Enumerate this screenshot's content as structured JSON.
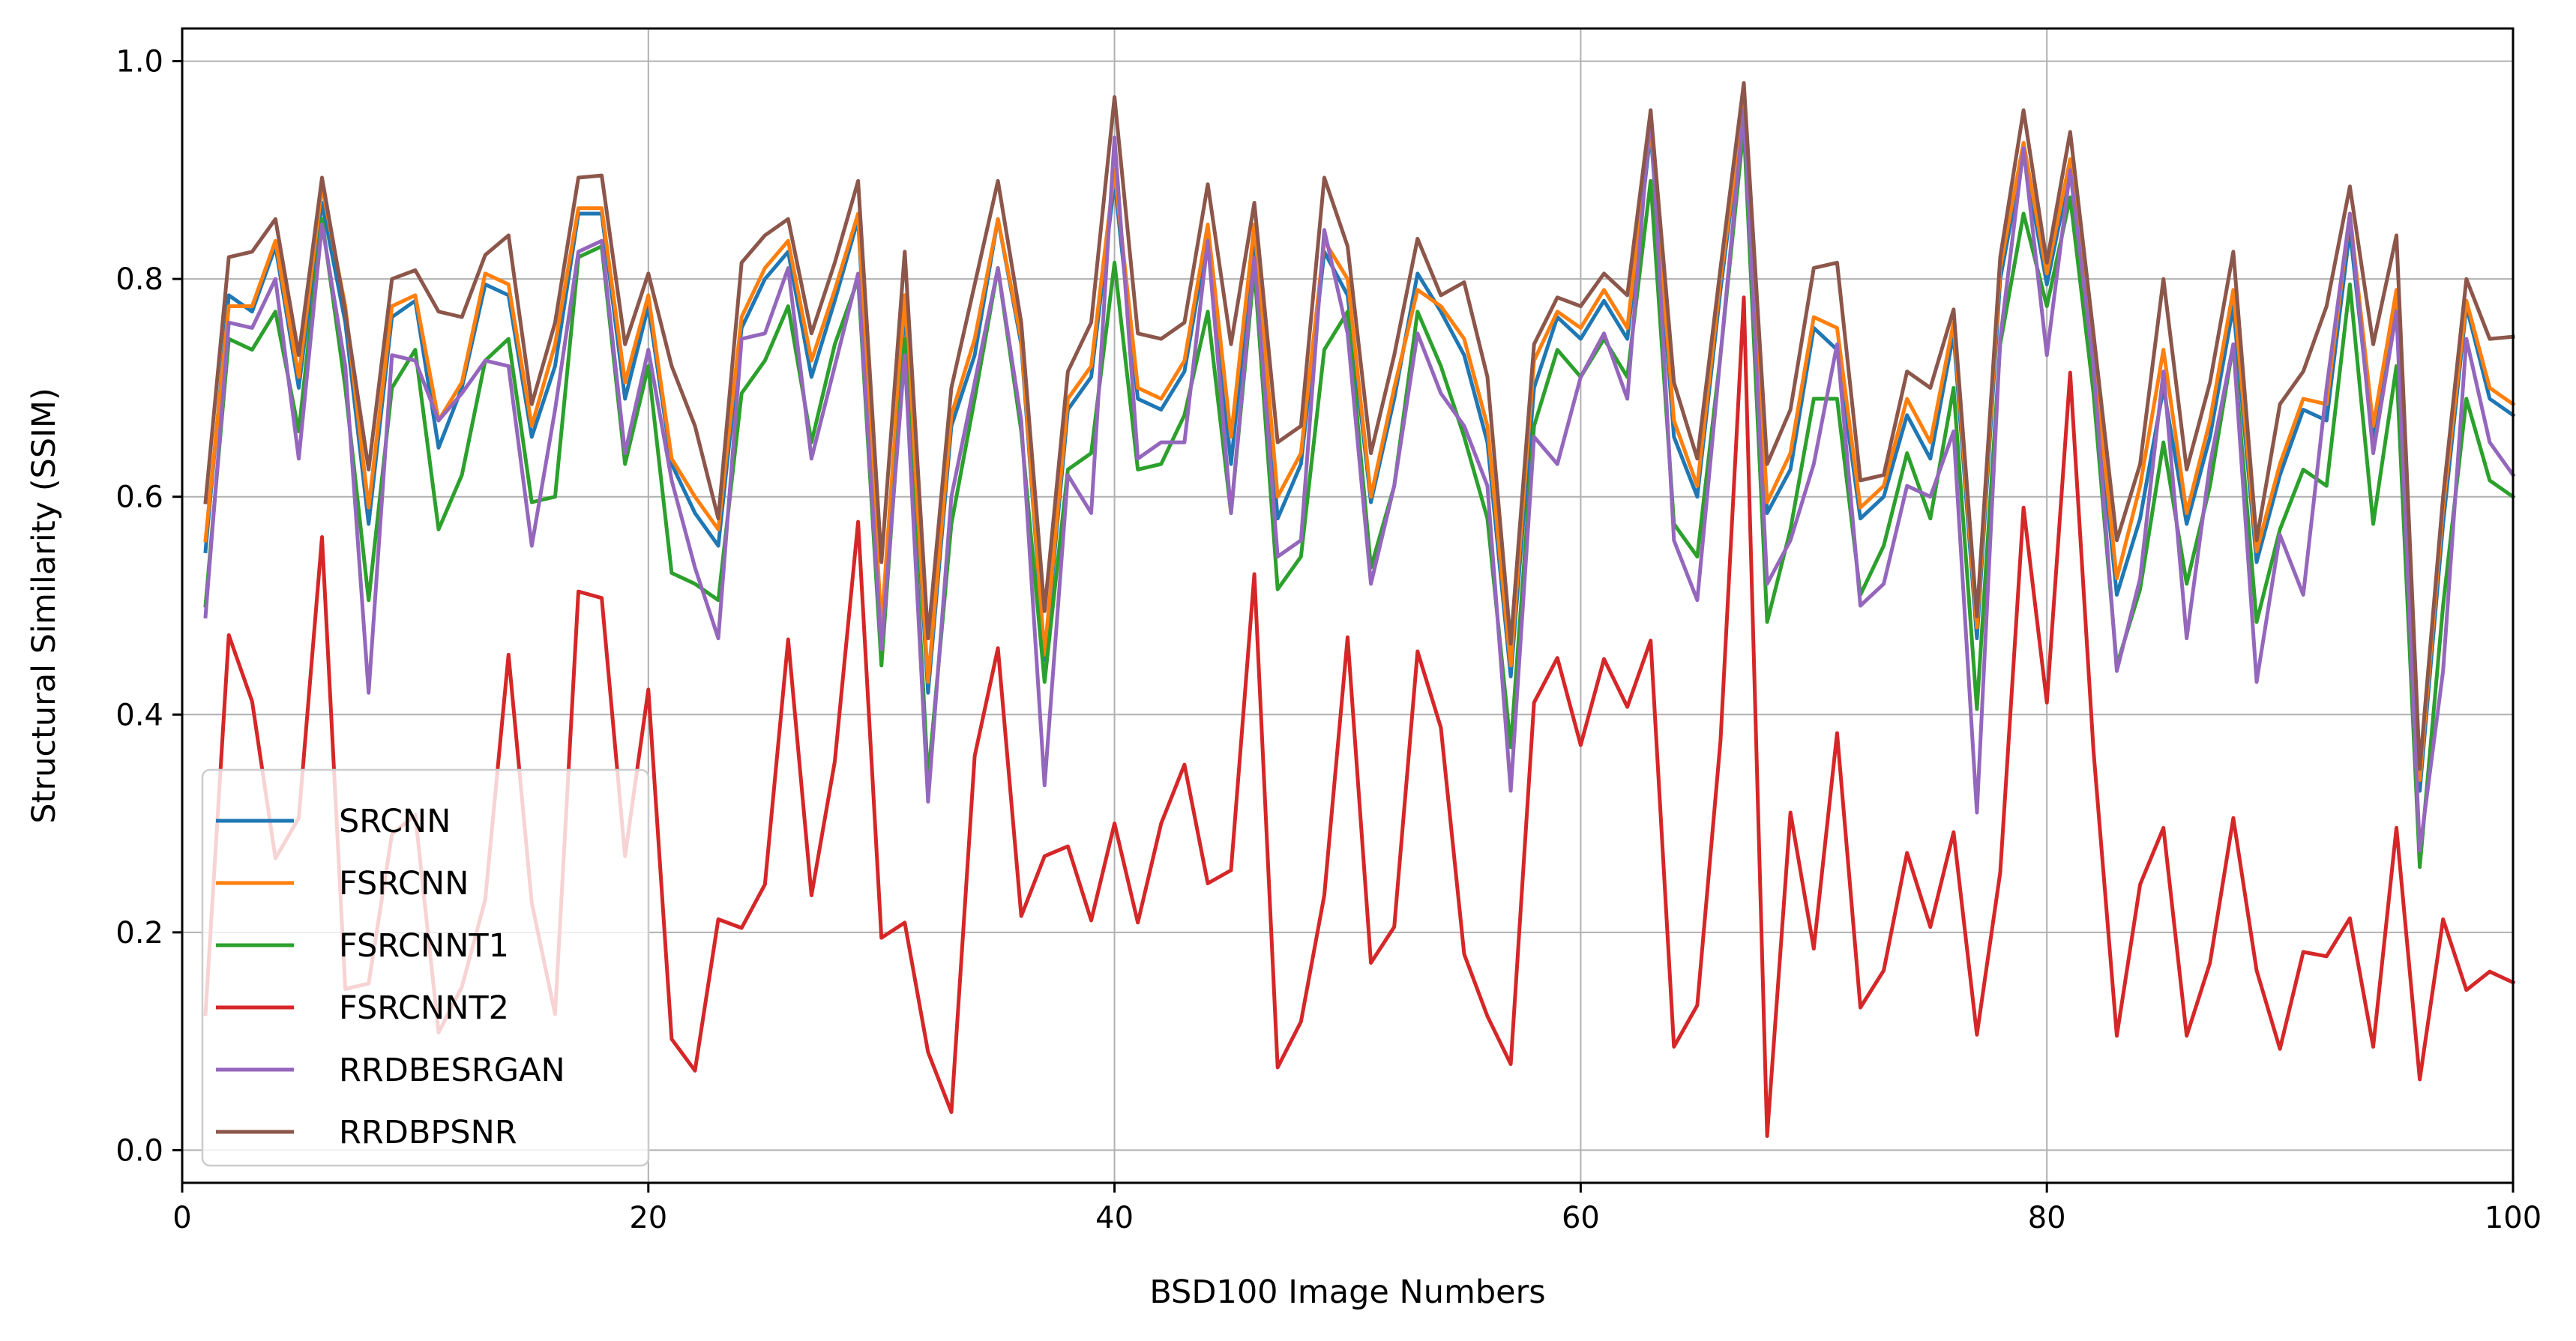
{
  "chart_data": {
    "type": "line",
    "title": "",
    "xlabel": "BSD100 Image Numbers",
    "ylabel": "Structural Similarity (SSIM)",
    "xlim": [
      0,
      100
    ],
    "ylim": [
      -0.03,
      1.03
    ],
    "xticks": [
      0,
      20,
      40,
      60,
      80,
      100
    ],
    "xtick_labels": [
      "0",
      "20",
      "40",
      "60",
      "80",
      "100"
    ],
    "yticks": [
      0.0,
      0.2,
      0.4,
      0.6,
      0.8,
      1.0
    ],
    "ytick_labels": [
      "0.0",
      "0.2",
      "0.4",
      "0.6",
      "0.8",
      "1.0"
    ],
    "grid": true,
    "legend_position": "bottom-left",
    "x": [
      1,
      2,
      3,
      4,
      5,
      6,
      7,
      8,
      9,
      10,
      11,
      12,
      13,
      14,
      15,
      16,
      17,
      18,
      19,
      20,
      21,
      22,
      23,
      24,
      25,
      26,
      27,
      28,
      29,
      30,
      31,
      32,
      33,
      34,
      35,
      36,
      37,
      38,
      39,
      40,
      41,
      42,
      43,
      44,
      45,
      46,
      47,
      48,
      49,
      50,
      51,
      52,
      53,
      54,
      55,
      56,
      57,
      58,
      59,
      60,
      61,
      62,
      63,
      64,
      65,
      66,
      67,
      68,
      69,
      70,
      71,
      72,
      73,
      74,
      75,
      76,
      77,
      78,
      79,
      80,
      81,
      82,
      83,
      84,
      85,
      86,
      87,
      88,
      89,
      90,
      91,
      92,
      93,
      94,
      95,
      96,
      97,
      98,
      99,
      100
    ],
    "series": [
      {
        "name": "SRCNN",
        "color": "#1f77b4",
        "values": [
          0.55,
          0.785,
          0.77,
          0.83,
          0.7,
          0.87,
          0.76,
          0.575,
          0.765,
          0.78,
          0.645,
          0.7,
          0.795,
          0.785,
          0.655,
          0.72,
          0.86,
          0.86,
          0.69,
          0.775,
          0.63,
          0.585,
          0.555,
          0.755,
          0.8,
          0.825,
          0.71,
          0.78,
          0.855,
          0.47,
          0.775,
          0.42,
          0.665,
          0.73,
          0.855,
          0.74,
          0.45,
          0.68,
          0.71,
          0.89,
          0.69,
          0.68,
          0.715,
          0.84,
          0.63,
          0.84,
          0.58,
          0.63,
          0.825,
          0.785,
          0.595,
          0.69,
          0.805,
          0.77,
          0.73,
          0.65,
          0.435,
          0.7,
          0.765,
          0.745,
          0.78,
          0.745,
          0.935,
          0.655,
          0.6,
          0.79,
          0.96,
          0.585,
          0.625,
          0.755,
          0.735,
          0.58,
          0.6,
          0.675,
          0.635,
          0.75,
          0.47,
          0.8,
          0.915,
          0.795,
          0.9,
          0.72,
          0.51,
          0.58,
          0.7,
          0.575,
          0.655,
          0.775,
          0.54,
          0.62,
          0.68,
          0.67,
          0.845,
          0.65,
          0.78,
          0.33,
          0.575,
          0.775,
          0.69,
          0.675
        ]
      },
      {
        "name": "FSRCNN",
        "color": "#ff7f0e",
        "values": [
          0.56,
          0.775,
          0.775,
          0.835,
          0.71,
          0.885,
          0.775,
          0.59,
          0.775,
          0.785,
          0.67,
          0.705,
          0.805,
          0.795,
          0.665,
          0.74,
          0.865,
          0.865,
          0.705,
          0.785,
          0.635,
          0.6,
          0.57,
          0.765,
          0.81,
          0.835,
          0.725,
          0.79,
          0.86,
          0.48,
          0.785,
          0.43,
          0.675,
          0.745,
          0.855,
          0.745,
          0.455,
          0.69,
          0.72,
          0.9,
          0.7,
          0.69,
          0.725,
          0.85,
          0.655,
          0.85,
          0.6,
          0.64,
          0.835,
          0.8,
          0.6,
          0.7,
          0.79,
          0.775,
          0.745,
          0.665,
          0.445,
          0.725,
          0.77,
          0.755,
          0.79,
          0.755,
          0.94,
          0.67,
          0.61,
          0.8,
          0.96,
          0.595,
          0.64,
          0.765,
          0.755,
          0.59,
          0.61,
          0.69,
          0.65,
          0.76,
          0.48,
          0.81,
          0.925,
          0.805,
          0.91,
          0.73,
          0.525,
          0.61,
          0.735,
          0.585,
          0.67,
          0.79,
          0.55,
          0.63,
          0.69,
          0.685,
          0.86,
          0.665,
          0.79,
          0.34,
          0.59,
          0.78,
          0.7,
          0.685
        ]
      },
      {
        "name": "FSRCNNT1",
        "color": "#2ca02c",
        "values": [
          0.5,
          0.745,
          0.735,
          0.77,
          0.66,
          0.855,
          0.7,
          0.505,
          0.7,
          0.735,
          0.57,
          0.62,
          0.725,
          0.745,
          0.595,
          0.6,
          0.82,
          0.83,
          0.63,
          0.72,
          0.53,
          0.52,
          0.505,
          0.695,
          0.725,
          0.775,
          0.65,
          0.74,
          0.8,
          0.445,
          0.745,
          0.34,
          0.575,
          0.69,
          0.81,
          0.66,
          0.43,
          0.625,
          0.64,
          0.815,
          0.625,
          0.63,
          0.675,
          0.77,
          0.585,
          0.81,
          0.515,
          0.545,
          0.735,
          0.77,
          0.535,
          0.61,
          0.77,
          0.72,
          0.655,
          0.58,
          0.37,
          0.665,
          0.735,
          0.71,
          0.745,
          0.71,
          0.89,
          0.575,
          0.545,
          0.73,
          0.94,
          0.485,
          0.57,
          0.69,
          0.69,
          0.51,
          0.555,
          0.64,
          0.58,
          0.7,
          0.405,
          0.74,
          0.86,
          0.775,
          0.875,
          0.695,
          0.445,
          0.515,
          0.65,
          0.52,
          0.61,
          0.74,
          0.485,
          0.57,
          0.625,
          0.61,
          0.795,
          0.575,
          0.72,
          0.26,
          0.5,
          0.69,
          0.615,
          0.6
        ]
      },
      {
        "name": "FSRCNNT2",
        "color": "#d62728",
        "values": [
          0.125,
          0.473,
          0.412,
          0.268,
          0.305,
          0.563,
          0.148,
          0.153,
          0.29,
          0.308,
          0.108,
          0.15,
          0.23,
          0.455,
          0.227,
          0.125,
          0.513,
          0.507,
          0.27,
          0.423,
          0.102,
          0.073,
          0.212,
          0.204,
          0.244,
          0.469,
          0.234,
          0.357,
          0.577,
          0.195,
          0.209,
          0.09,
          0.035,
          0.362,
          0.461,
          0.215,
          0.27,
          0.279,
          0.211,
          0.3,
          0.209,
          0.3,
          0.354,
          0.245,
          0.257,
          0.529,
          0.076,
          0.118,
          0.234,
          0.471,
          0.172,
          0.205,
          0.458,
          0.388,
          0.18,
          0.123,
          0.079,
          0.411,
          0.452,
          0.372,
          0.451,
          0.407,
          0.468,
          0.095,
          0.133,
          0.376,
          0.783,
          0.013,
          0.31,
          0.185,
          0.383,
          0.131,
          0.165,
          0.273,
          0.205,
          0.292,
          0.106,
          0.255,
          0.59,
          0.411,
          0.714,
          0.367,
          0.105,
          0.244,
          0.296,
          0.105,
          0.172,
          0.305,
          0.165,
          0.093,
          0.182,
          0.178,
          0.213,
          0.095,
          0.296,
          0.065,
          0.212,
          0.147,
          0.164,
          0.154
        ]
      },
      {
        "name": "RRDBESRGAN",
        "color": "#9467bd",
        "values": [
          0.49,
          0.76,
          0.755,
          0.8,
          0.635,
          0.85,
          0.72,
          0.42,
          0.73,
          0.725,
          0.67,
          0.695,
          0.725,
          0.72,
          0.555,
          0.68,
          0.825,
          0.835,
          0.64,
          0.735,
          0.615,
          0.535,
          0.47,
          0.745,
          0.75,
          0.81,
          0.635,
          0.72,
          0.805,
          0.46,
          0.73,
          0.32,
          0.6,
          0.705,
          0.81,
          0.67,
          0.335,
          0.62,
          0.585,
          0.93,
          0.635,
          0.65,
          0.65,
          0.835,
          0.585,
          0.82,
          0.545,
          0.56,
          0.845,
          0.75,
          0.52,
          0.61,
          0.75,
          0.695,
          0.665,
          0.61,
          0.33,
          0.655,
          0.63,
          0.71,
          0.75,
          0.69,
          0.955,
          0.56,
          0.505,
          0.73,
          0.955,
          0.52,
          0.56,
          0.63,
          0.74,
          0.5,
          0.52,
          0.61,
          0.6,
          0.66,
          0.31,
          0.745,
          0.92,
          0.73,
          0.9,
          0.72,
          0.44,
          0.525,
          0.715,
          0.47,
          0.63,
          0.74,
          0.43,
          0.565,
          0.51,
          0.7,
          0.86,
          0.64,
          0.77,
          0.275,
          0.44,
          0.745,
          0.65,
          0.62
        ]
      },
      {
        "name": "RRDBPSNR",
        "color": "#8c564b",
        "values": [
          0.595,
          0.82,
          0.825,
          0.855,
          0.73,
          0.893,
          0.77,
          0.625,
          0.8,
          0.808,
          0.77,
          0.765,
          0.822,
          0.84,
          0.685,
          0.76,
          0.893,
          0.895,
          0.74,
          0.805,
          0.72,
          0.665,
          0.58,
          0.815,
          0.84,
          0.855,
          0.75,
          0.815,
          0.89,
          0.54,
          0.825,
          0.47,
          0.7,
          0.795,
          0.89,
          0.76,
          0.495,
          0.715,
          0.76,
          0.967,
          0.75,
          0.745,
          0.76,
          0.887,
          0.74,
          0.87,
          0.65,
          0.665,
          0.893,
          0.83,
          0.64,
          0.73,
          0.837,
          0.785,
          0.797,
          0.71,
          0.465,
          0.74,
          0.783,
          0.775,
          0.805,
          0.785,
          0.955,
          0.705,
          0.635,
          0.81,
          0.98,
          0.63,
          0.68,
          0.81,
          0.815,
          0.615,
          0.62,
          0.715,
          0.7,
          0.772,
          0.49,
          0.82,
          0.955,
          0.815,
          0.935,
          0.75,
          0.56,
          0.63,
          0.8,
          0.625,
          0.705,
          0.825,
          0.56,
          0.685,
          0.715,
          0.775,
          0.885,
          0.74,
          0.84,
          0.35,
          0.6,
          0.8,
          0.745,
          0.747
        ]
      }
    ]
  }
}
